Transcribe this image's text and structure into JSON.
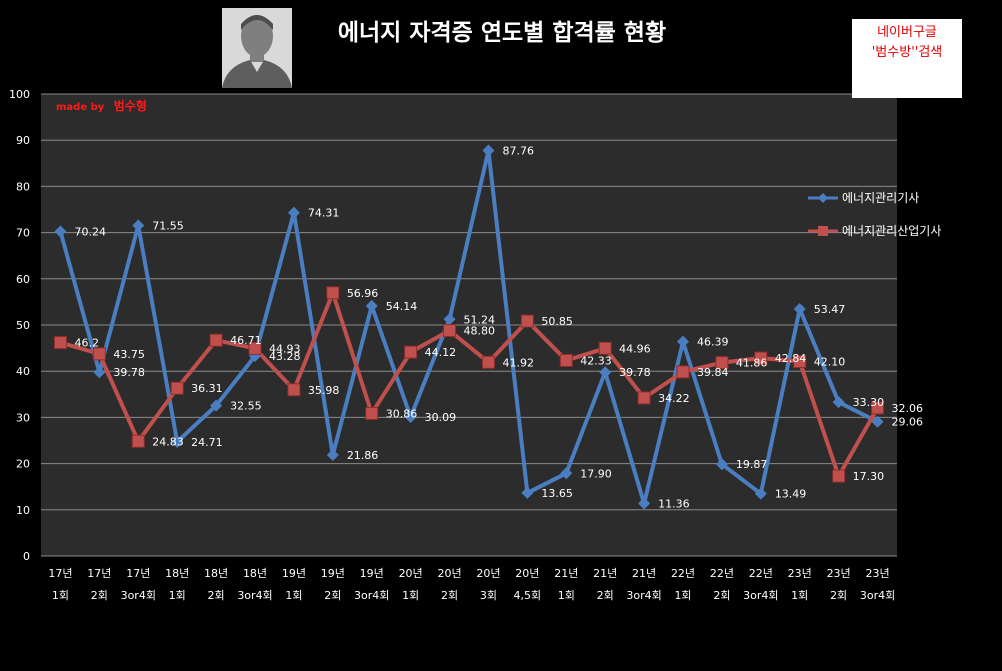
{
  "chart_data": {
    "type": "line",
    "title": "에너지 자격증 연도별 합격률 현황",
    "xlabel": "",
    "ylabel": "",
    "ylim": [
      0,
      100
    ],
    "yticks": [
      0,
      10,
      20,
      30,
      40,
      50,
      60,
      70,
      80,
      90,
      100
    ],
    "grid": true,
    "legend_position": "right",
    "categories": [
      [
        "17년",
        "1회"
      ],
      [
        "17년",
        "2회"
      ],
      [
        "17년",
        "3or4회"
      ],
      [
        "18년",
        "1회"
      ],
      [
        "18년",
        "2회"
      ],
      [
        "18년",
        "3or4회"
      ],
      [
        "19년",
        "1회"
      ],
      [
        "19년",
        "2회"
      ],
      [
        "19년",
        "3or4회"
      ],
      [
        "20년",
        "1회"
      ],
      [
        "20년",
        "2회"
      ],
      [
        "20년",
        "3회"
      ],
      [
        "20년",
        "4,5회"
      ],
      [
        "21년",
        "1회"
      ],
      [
        "21년",
        "2회"
      ],
      [
        "21년",
        "3or4회"
      ],
      [
        "22년",
        "1회"
      ],
      [
        "22년",
        "2회"
      ],
      [
        "22년",
        "3or4회"
      ],
      [
        "23년",
        "1회"
      ],
      [
        "23년",
        "2회"
      ],
      [
        "23년",
        "3or4회"
      ]
    ],
    "series": [
      {
        "name": "에너지관리기사",
        "color": "#4a7ec1",
        "marker": "diamond",
        "values": [
          70.24,
          39.78,
          71.55,
          24.71,
          32.55,
          43.28,
          74.31,
          21.86,
          54.14,
          30.09,
          51.24,
          87.76,
          13.65,
          17.9,
          39.78,
          11.36,
          46.39,
          19.87,
          13.49,
          53.47,
          33.3,
          29.06
        ],
        "labels": [
          "70.24",
          "39.78",
          "71.55",
          "24.71",
          "32.55",
          "43.28",
          "74.31",
          "21.86",
          "54.14",
          "30.09",
          "51.24",
          "87.76",
          "13.65",
          "17.90",
          "39.78",
          "11.36",
          "46.39",
          "19.87",
          "13.49",
          "53.47",
          "33.30",
          "29.06"
        ]
      },
      {
        "name": "에너지관리산업기사",
        "color": "#c0504d",
        "marker": "square",
        "values": [
          46.2,
          43.75,
          24.83,
          36.31,
          46.71,
          44.93,
          35.98,
          56.96,
          30.86,
          44.12,
          48.8,
          41.92,
          50.85,
          42.33,
          44.96,
          34.22,
          39.84,
          41.86,
          42.84,
          42.1,
          17.3,
          32.06
        ],
        "labels": [
          "46.2",
          "43.75",
          "24.83",
          "36.31",
          "46.71",
          "44.93",
          "35.98",
          "56.96",
          "30.86",
          "44.12",
          "48.80",
          "41.92",
          "50.85",
          "42.33",
          "44.96",
          "34.22",
          "39.84",
          "41.86",
          "42.84",
          "42.10",
          "17.30",
          "32.06"
        ]
      }
    ],
    "annotations": {
      "credit_prefix": "made by",
      "credit_name": "범수형",
      "badge_line1": "네이버구글",
      "badge_line2": "'범수방''검색"
    }
  },
  "colors": {
    "background": "#000000",
    "plot_area": "#2c2c2c",
    "gridline": "#8a8a8a",
    "text": "#ffffff",
    "badge_text": "#e00000"
  },
  "icons": {
    "avatar": "user-silhouette-icon"
  }
}
